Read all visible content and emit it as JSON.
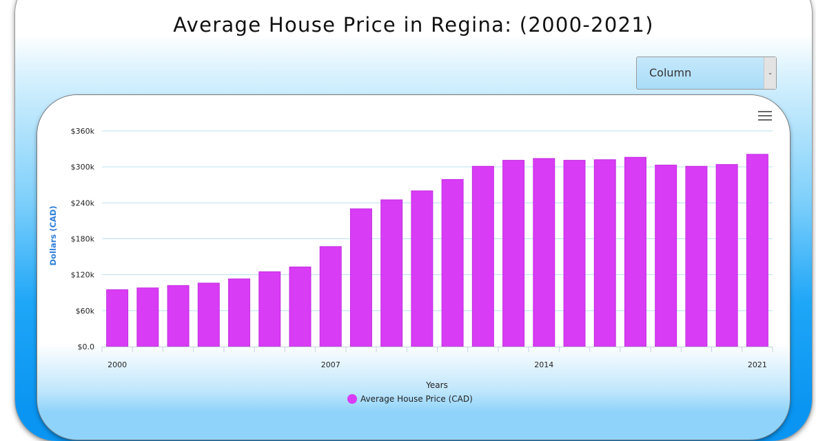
{
  "page": {
    "title": "Average House Price in Regina: (2000-2021)"
  },
  "chart_type_select": {
    "selected": "Column",
    "arrow_icon": "chevron-down-icon"
  },
  "chart_menu": {
    "icon": "hamburger-menu-icon"
  },
  "colors": {
    "bar": "#d83cf4",
    "bar_stroke": "#c22fe0",
    "grid": "#b9dfee",
    "axis_title": "#2f7ed8"
  },
  "chart_data": {
    "type": "bar",
    "x": [
      2000,
      2001,
      2002,
      2003,
      2004,
      2005,
      2006,
      2007,
      2008,
      2009,
      2010,
      2011,
      2012,
      2013,
      2014,
      2015,
      2016,
      2017,
      2018,
      2019,
      2020,
      2021
    ],
    "x_tick_labels": [
      "2000",
      "2007",
      "2014",
      "2021"
    ],
    "series": [
      {
        "name": "Average House Price (CAD)",
        "values": [
          95000,
          98000,
          102000,
          106000,
          113000,
          125000,
          133000,
          167000,
          230000,
          245000,
          260000,
          279000,
          301000,
          311000,
          314000,
          311000,
          312000,
          316000,
          303000,
          301000,
          304000,
          321000
        ]
      }
    ],
    "xlabel": "Years",
    "ylabel": "Dollars (CAD)",
    "ylim": [
      0,
      360000
    ],
    "y_ticks": [
      0,
      60000,
      120000,
      180000,
      240000,
      300000,
      360000
    ],
    "y_tick_labels": [
      "$0.0",
      "$60k",
      "$120k",
      "$180k",
      "$240k",
      "$300k",
      "$360k"
    ],
    "grid": true,
    "legend": "bottom-center"
  }
}
